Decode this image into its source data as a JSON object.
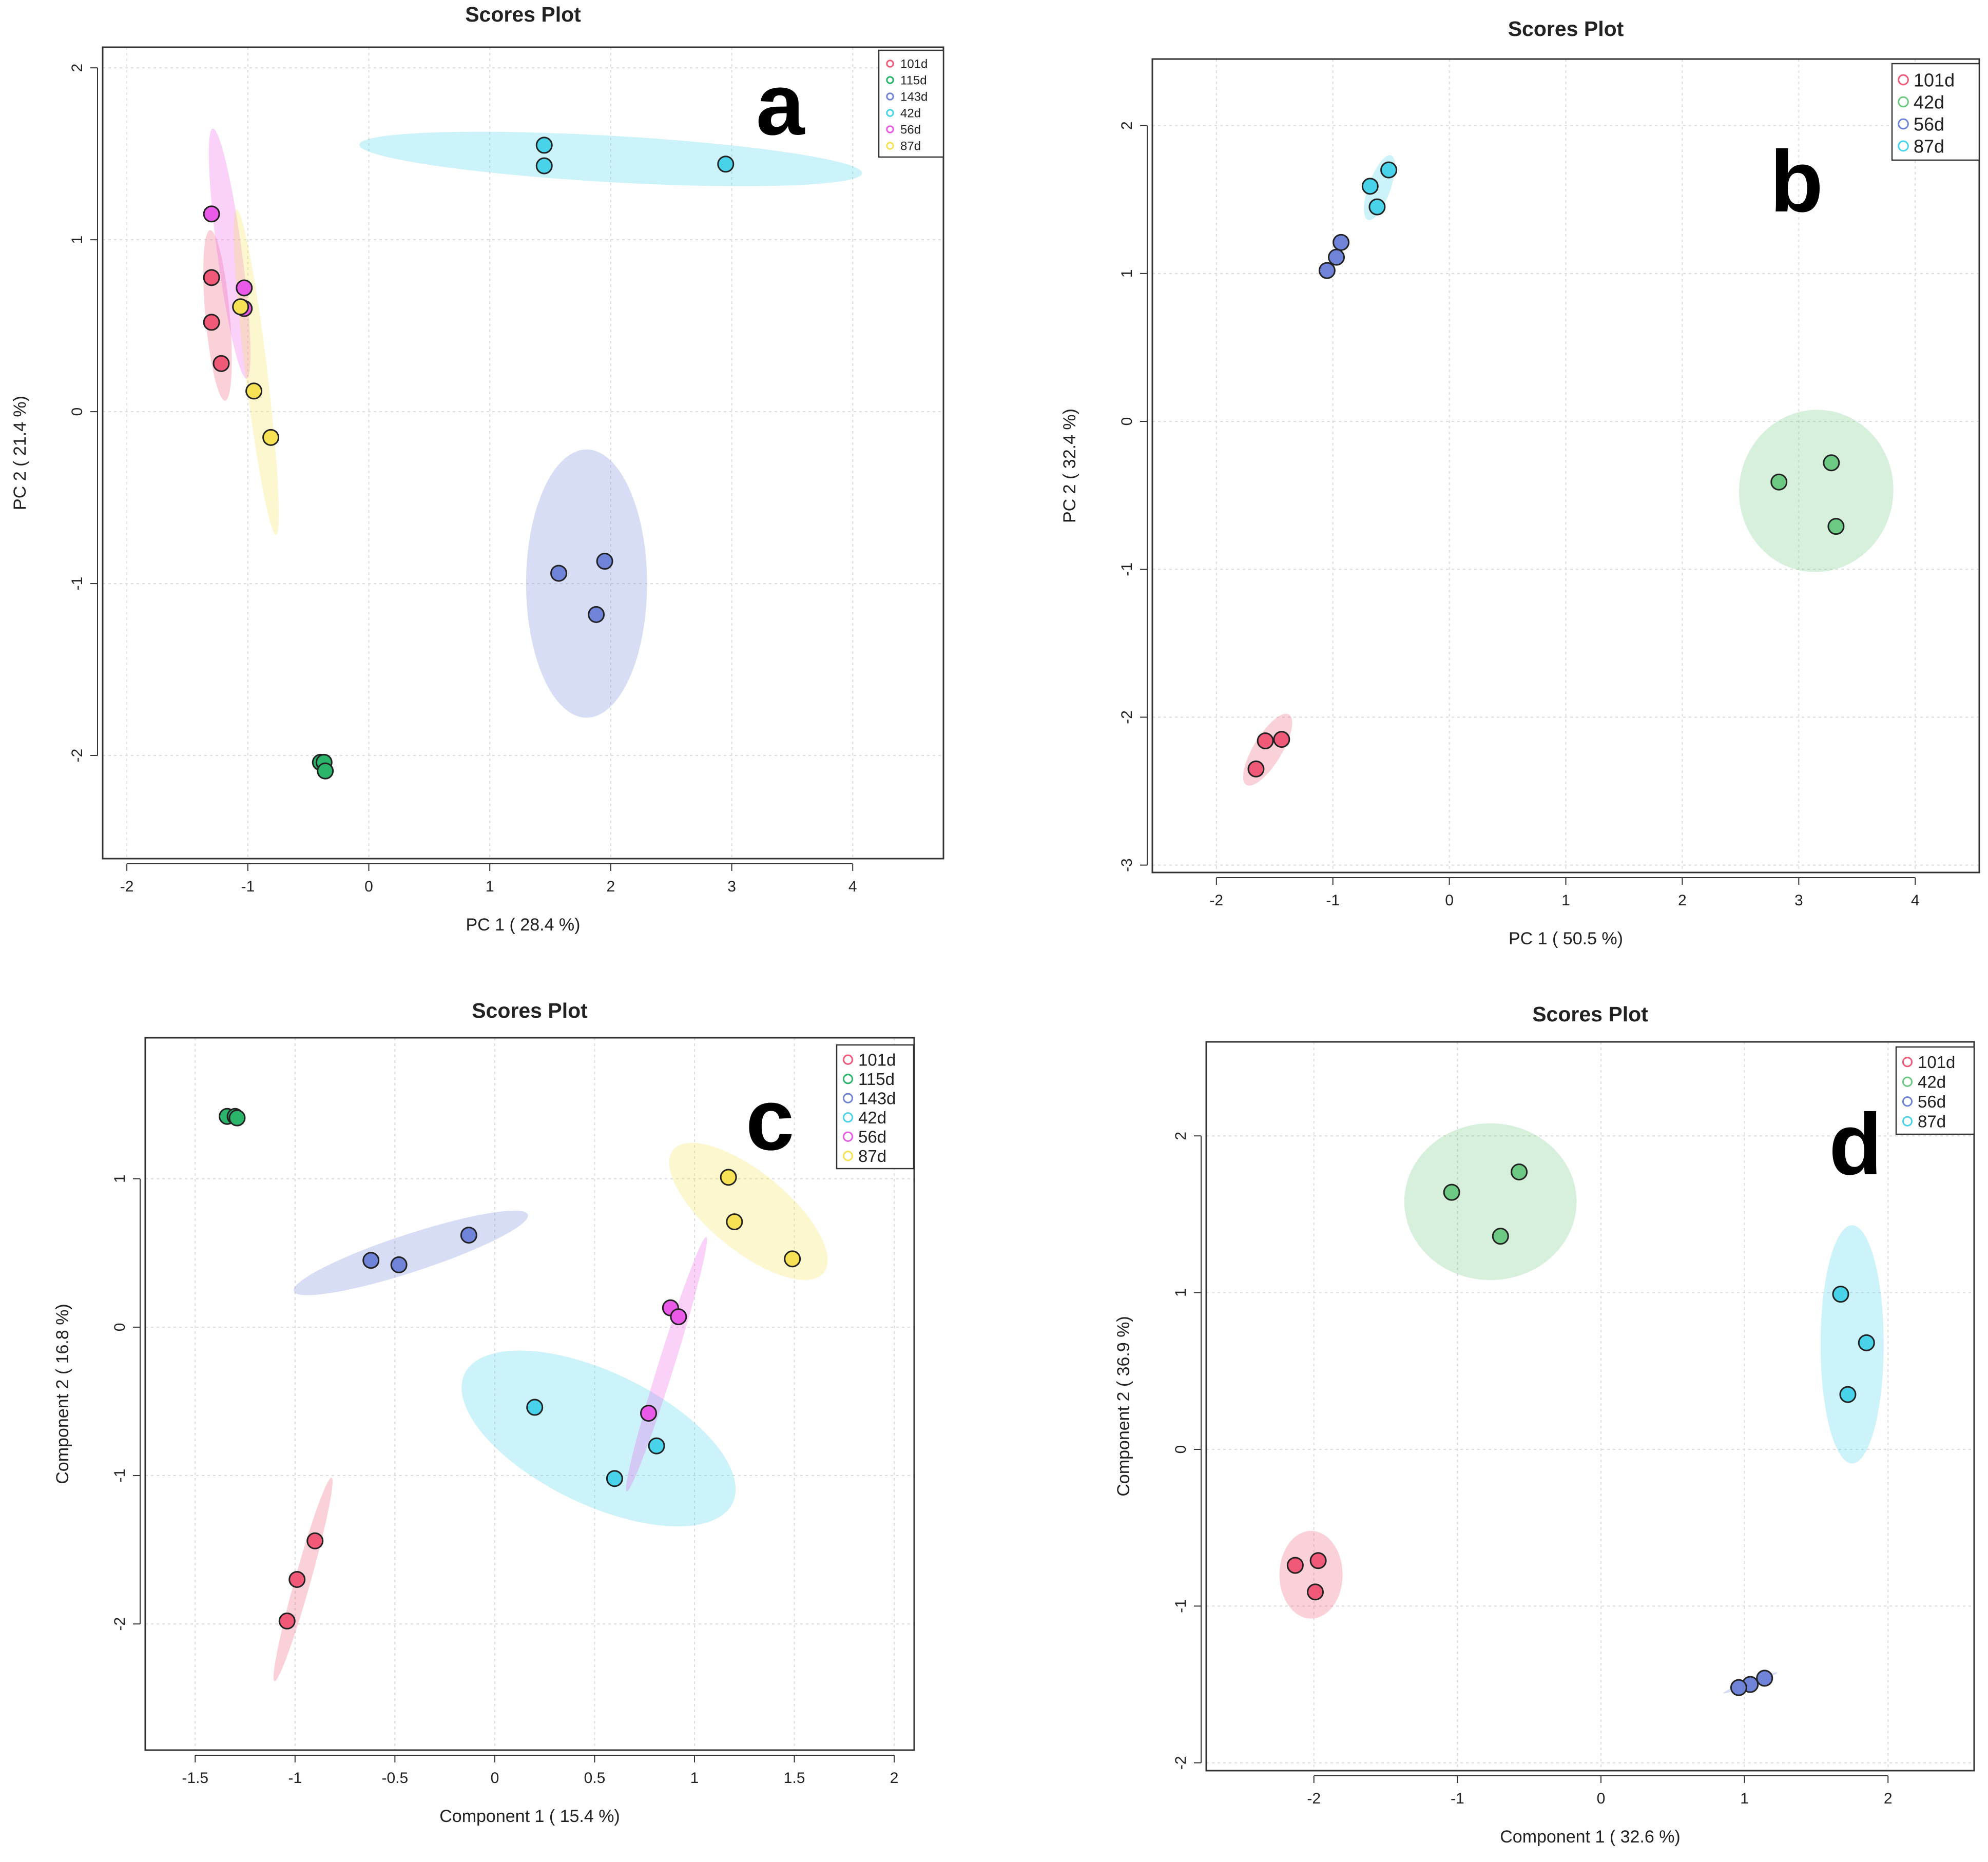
{
  "colors": {
    "101d": "#f05a78",
    "115d": "#2ab56a",
    "143d": "#6f84d8",
    "42d": "#49d3ea",
    "56d": "#ea5ae8",
    "87d": "#f7e255",
    "42d_green": "#6cc983",
    "56d_blue": "#6f84d8",
    "87d_cyan": "#49d3ea"
  },
  "chart_data": [
    {
      "type": "scatter",
      "panel": "a",
      "title": "Scores Plot",
      "xlabel": "PC 1 ( 28.4 %)",
      "ylabel": "PC 2 ( 21.4 %)",
      "xlim": [
        -2.2,
        4.75
      ],
      "ylim": [
        -2.6,
        2.12
      ],
      "xticks": [
        -2,
        -1,
        0,
        1,
        2,
        3,
        4
      ],
      "yticks": [
        -2,
        -1,
        0,
        1,
        2
      ],
      "legend_size": "small",
      "series": [
        {
          "name": "101d",
          "color": "#f05a78",
          "points": [
            [
              -1.3,
              0.78
            ],
            [
              -1.3,
              0.52
            ],
            [
              -1.22,
              0.28
            ]
          ],
          "ellipse": {
            "center": [
              -1.25,
              0.56
            ],
            "rx": 0.5,
            "ry": 0.1,
            "angle_data": [
              1,
              -8
            ]
          }
        },
        {
          "name": "115d",
          "color": "#2ab56a",
          "points": [
            [
              -0.4,
              -2.04
            ],
            [
              -0.37,
              -2.04
            ],
            [
              -0.36,
              -2.09
            ]
          ],
          "ellipse": {
            "center": [
              -0.38,
              -2.06
            ],
            "rx": 0.04,
            "ry": 0.02,
            "angle_data": [
              0,
              1
            ]
          }
        },
        {
          "name": "143d",
          "color": "#6f84d8",
          "points": [
            [
              1.57,
              -0.94
            ],
            [
              1.95,
              -0.87
            ],
            [
              1.88,
              -1.18
            ]
          ],
          "ellipse": {
            "center": [
              1.8,
              -1.0
            ],
            "rx": 0.5,
            "ry": 0.78,
            "angle_data": [
              1,
              0
            ]
          }
        },
        {
          "name": "42d",
          "color": "#49d3ea",
          "points": [
            [
              1.45,
              1.55
            ],
            [
              1.45,
              1.43
            ],
            [
              2.95,
              1.44
            ]
          ],
          "ellipse": {
            "center": [
              2.0,
              1.47
            ],
            "rx": 2.08,
            "ry": 0.135,
            "angle_data": [
              1,
              -0.04
            ]
          }
        },
        {
          "name": "56d",
          "color": "#ea5ae8",
          "points": [
            [
              -1.3,
              1.15
            ],
            [
              -1.03,
              0.72
            ],
            [
              -1.03,
              0.6
            ]
          ],
          "ellipse": {
            "center": [
              -1.15,
              0.92
            ],
            "rx": 0.74,
            "ry": 0.1,
            "angle_data": [
              1,
              -5.2
            ]
          }
        },
        {
          "name": "87d",
          "color": "#f7e255",
          "points": [
            [
              -1.06,
              0.61
            ],
            [
              -0.95,
              0.12
            ],
            [
              -0.81,
              -0.15
            ]
          ],
          "ellipse": {
            "center": [
              -0.93,
              0.23
            ],
            "rx": 0.96,
            "ry": 0.09,
            "angle_data": [
              1,
              -5.8
            ]
          }
        }
      ]
    },
    {
      "type": "scatter",
      "panel": "b",
      "title": "Scores Plot",
      "xlabel": "PC 1 ( 50.5 %)",
      "ylabel": "PC 2 ( 32.4 %)",
      "xlim": [
        -2.55,
        4.55
      ],
      "ylim": [
        -3.05,
        2.45
      ],
      "xticks": [
        -2,
        -1,
        0,
        1,
        2,
        3,
        4
      ],
      "yticks": [
        -3,
        -2,
        -1,
        0,
        1,
        2
      ],
      "legend_size": "large",
      "series": [
        {
          "name": "101d",
          "color": "#f05a78",
          "points": [
            [
              -1.58,
              -2.16
            ],
            [
              -1.44,
              -2.15
            ],
            [
              -1.66,
              -2.35
            ]
          ],
          "ellipse": {
            "center": [
              -1.56,
              -2.22
            ],
            "rx": 0.3,
            "ry": 0.11,
            "angle_data": [
              1,
              1.3
            ]
          }
        },
        {
          "name": "42d",
          "color": "#6cc983",
          "points": [
            [
              2.83,
              -0.41
            ],
            [
              3.28,
              -0.28
            ],
            [
              3.32,
              -0.71
            ]
          ],
          "ellipse": {
            "center": [
              3.15,
              -0.47
            ],
            "rx": 0.66,
            "ry": 0.55,
            "angle_data": [
              1,
              -0.1
            ]
          }
        },
        {
          "name": "56d",
          "color": "#6f84d8",
          "points": [
            [
              -0.93,
              1.21
            ],
            [
              -0.97,
              1.11
            ],
            [
              -1.05,
              1.02
            ]
          ],
          "ellipse": {
            "center": [
              -0.98,
              1.11
            ],
            "rx": 0.16,
            "ry": 0.02,
            "angle_data": [
              1,
              1.5
            ]
          }
        },
        {
          "name": "87d",
          "color": "#49d3ea",
          "points": [
            [
              -0.68,
              1.59
            ],
            [
              -0.52,
              1.7
            ],
            [
              -0.62,
              1.45
            ]
          ],
          "ellipse": {
            "center": [
              -0.6,
              1.58
            ],
            "rx": 0.24,
            "ry": 0.09,
            "angle_data": [
              1,
              2.2
            ]
          }
        }
      ]
    },
    {
      "type": "scatter",
      "panel": "c",
      "title": "Scores Plot",
      "xlabel": "Component 1 ( 15.4 %)",
      "ylabel": "Component 2 ( 16.8 %)",
      "xlim": [
        -1.75,
        2.1
      ],
      "ylim": [
        -2.85,
        1.95
      ],
      "xticks": [
        -1.5,
        -1.0,
        -0.5,
        0.0,
        0.5,
        1.0,
        1.5,
        2.0
      ],
      "ytick_labels": [
        "-2",
        "-1",
        "0",
        "1"
      ],
      "yticks": [
        -2,
        -1,
        0,
        1
      ],
      "legend_size": "large",
      "series": [
        {
          "name": "101d",
          "color": "#f05a78",
          "points": [
            [
              -0.9,
              -1.44
            ],
            [
              -0.99,
              -1.7
            ],
            [
              -1.04,
              -1.98
            ]
          ],
          "ellipse": {
            "center": [
              -0.96,
              -1.7
            ],
            "rx": 0.7,
            "ry": 0.04,
            "angle_data": [
              1,
              4.8
            ]
          }
        },
        {
          "name": "115d",
          "color": "#2ab56a",
          "points": [
            [
              -1.34,
              1.42
            ],
            [
              -1.3,
              1.42
            ],
            [
              -1.29,
              1.41
            ]
          ],
          "ellipse": null
        },
        {
          "name": "143d",
          "color": "#6f84d8",
          "points": [
            [
              -0.62,
              0.45
            ],
            [
              -0.48,
              0.42
            ],
            [
              -0.13,
              0.62
            ]
          ],
          "ellipse": {
            "center": [
              -0.42,
              0.5
            ],
            "rx": 0.64,
            "ry": 0.12,
            "angle_data": [
              1,
              0.44
            ]
          }
        },
        {
          "name": "42d",
          "color": "#49d3ea",
          "points": [
            [
              0.2,
              -0.54
            ],
            [
              0.6,
              -1.02
            ],
            [
              0.81,
              -0.8
            ]
          ],
          "ellipse": {
            "center": [
              0.52,
              -0.75
            ],
            "rx": 0.8,
            "ry": 0.4,
            "angle_data": [
              1,
              -0.65
            ]
          }
        },
        {
          "name": "56d",
          "color": "#ea5ae8",
          "points": [
            [
              0.88,
              0.13
            ],
            [
              0.92,
              0.07
            ],
            [
              0.77,
              -0.58
            ]
          ],
          "ellipse": {
            "center": [
              0.86,
              -0.25
            ],
            "rx": 0.88,
            "ry": 0.04,
            "angle_data": [
              1,
              4.3
            ]
          }
        },
        {
          "name": "87d",
          "color": "#f7e255",
          "points": [
            [
              1.17,
              1.01
            ],
            [
              1.2,
              0.71
            ],
            [
              1.49,
              0.46
            ]
          ],
          "ellipse": {
            "center": [
              1.27,
              0.78
            ],
            "rx": 0.56,
            "ry": 0.22,
            "angle_data": [
              1,
              -1.1
            ]
          }
        }
      ]
    },
    {
      "type": "scatter",
      "panel": "d",
      "title": "Scores Plot",
      "xlabel": "Component 1 ( 32.6 %)",
      "ylabel": "Component 2 ( 36.9 %)",
      "xlim": [
        -2.75,
        2.6
      ],
      "ylim": [
        -2.05,
        2.6
      ],
      "xticks": [
        -2,
        -1,
        0,
        1,
        2
      ],
      "yticks": [
        -2,
        -1,
        0,
        1,
        2
      ],
      "legend_size": "large",
      "series": [
        {
          "name": "101d",
          "color": "#f05a78",
          "points": [
            [
              -2.13,
              -0.74
            ],
            [
              -1.97,
              -0.71
            ],
            [
              -1.99,
              -0.91
            ]
          ],
          "ellipse": {
            "center": [
              -2.02,
              -0.8
            ],
            "rx": 0.22,
            "ry": 0.28,
            "angle_data": [
              1,
              0
            ]
          }
        },
        {
          "name": "42d",
          "color": "#6cc983",
          "points": [
            [
              -1.04,
              1.64
            ],
            [
              -0.57,
              1.77
            ],
            [
              -0.7,
              1.36
            ]
          ],
          "ellipse": {
            "center": [
              -0.77,
              1.58
            ],
            "rx": 0.6,
            "ry": 0.5,
            "angle_data": [
              1,
              0
            ]
          }
        },
        {
          "name": "56d",
          "color": "#6f84d8",
          "points": [
            [
              1.14,
              -1.46
            ],
            [
              1.04,
              -1.5
            ],
            [
              0.96,
              -1.52
            ]
          ],
          "ellipse": {
            "center": [
              1.04,
              -1.49
            ],
            "rx": 0.2,
            "ry": 0.015,
            "angle_data": [
              1,
              0.35
            ]
          }
        },
        {
          "name": "87d",
          "color": "#49d3ea",
          "points": [
            [
              1.67,
              0.99
            ],
            [
              1.85,
              0.68
            ],
            [
              1.72,
              0.35
            ]
          ],
          "ellipse": {
            "center": [
              1.75,
              0.67
            ],
            "rx": 0.22,
            "ry": 0.76,
            "angle_data": [
              1,
              0
            ]
          }
        }
      ]
    }
  ]
}
